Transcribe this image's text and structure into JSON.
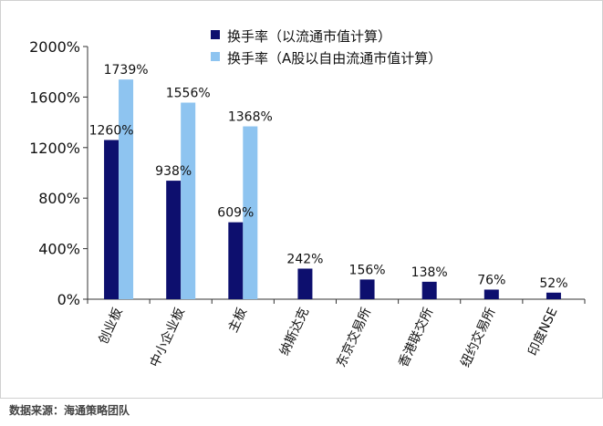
{
  "chart_data": {
    "type": "bar",
    "categories": [
      "创业板",
      "中小企业板",
      "主板",
      "纳斯达克",
      "东京交易所",
      "香港联交所",
      "纽约交易所",
      "印度NSE"
    ],
    "series": [
      {
        "name": "换手率（以流通市值计算）",
        "color": "#0d0f6e",
        "values": [
          1260,
          938,
          609,
          242,
          156,
          138,
          76,
          52
        ],
        "labels": [
          "1260%",
          "938%",
          "609%",
          "242%",
          "156%",
          "138%",
          "76%",
          "52%"
        ]
      },
      {
        "name": "换手率（A股以自由流通市值计算）",
        "color": "#8ec4f0",
        "values": [
          1739,
          1556,
          1368,
          null,
          null,
          null,
          null,
          null
        ],
        "labels": [
          "1739%",
          "1556%",
          "1368%",
          null,
          null,
          null,
          null,
          null
        ]
      }
    ],
    "yticks": [
      0,
      400,
      800,
      1200,
      1600,
      2000
    ],
    "ytick_labels": [
      "0%",
      "400%",
      "800%",
      "1200%",
      "1600%",
      "2000%"
    ],
    "ylim": [
      0,
      2000
    ],
    "grid": false,
    "legend_position": "top-right"
  },
  "source": "数据来源：海通策略团队"
}
